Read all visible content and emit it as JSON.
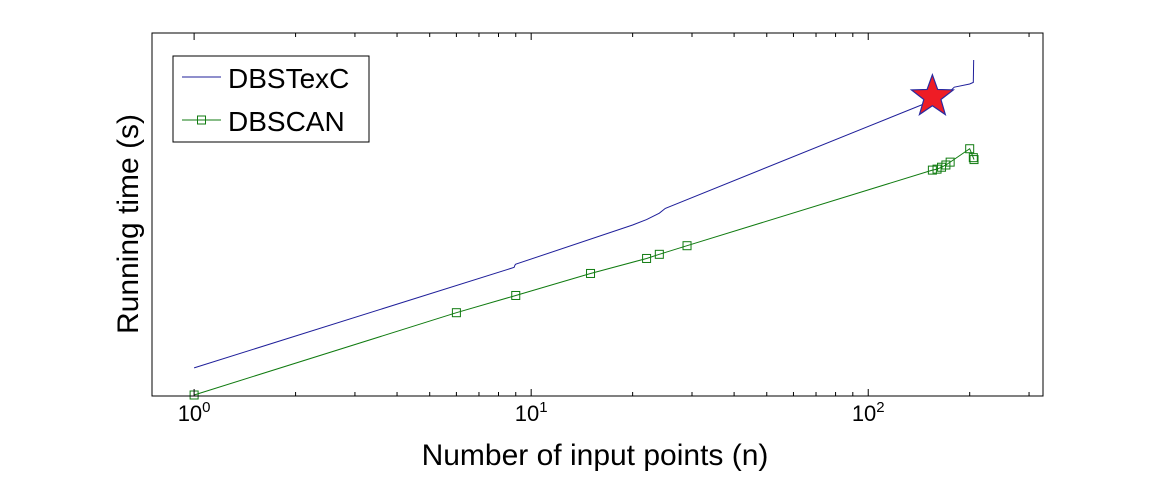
{
  "chart_data": {
    "type": "line",
    "xscale": "log",
    "xlim": [
      0.75,
      330
    ],
    "ylim": [
      0,
      1
    ],
    "grid": false,
    "legend_position": "top-left",
    "xlabel": "Number of input points (n)",
    "ylabel": "Running time (s)",
    "x_ticks": [
      {
        "value": 1,
        "base": "10",
        "exp": "0"
      },
      {
        "value": 10,
        "base": "10",
        "exp": "1"
      },
      {
        "value": 100,
        "base": "10",
        "exp": "2"
      }
    ],
    "series": [
      {
        "name": "DBSTexC",
        "color": "#1f1f9a",
        "marker": "none",
        "x": [
          1,
          8.9,
          8.95,
          9.0,
          20,
          22,
          24,
          25,
          150,
          160,
          170,
          180,
          200,
          205,
          205.5
        ],
        "y": [
          0.085,
          0.4,
          0.407,
          0.41,
          0.533,
          0.55,
          0.57,
          0.585,
          0.917,
          0.925,
          0.94,
          0.965,
          0.975,
          0.98,
          1.05
        ]
      },
      {
        "name": "DBSCAN",
        "color": "#107b10",
        "marker": "square",
        "x": [
          1,
          6,
          9,
          15,
          22,
          24,
          29,
          155,
          160,
          165,
          170,
          175,
          200,
          205,
          206
        ],
        "y": [
          0.0,
          0.258,
          0.312,
          0.381,
          0.428,
          0.441,
          0.468,
          0.705,
          0.708,
          0.714,
          0.721,
          0.73,
          0.772,
          0.744,
          0.738
        ]
      }
    ],
    "annotations": [
      {
        "type": "star",
        "x": 155,
        "y": 0.935,
        "color": "#ee1c25",
        "stroke": "#2a2aa0"
      }
    ]
  }
}
